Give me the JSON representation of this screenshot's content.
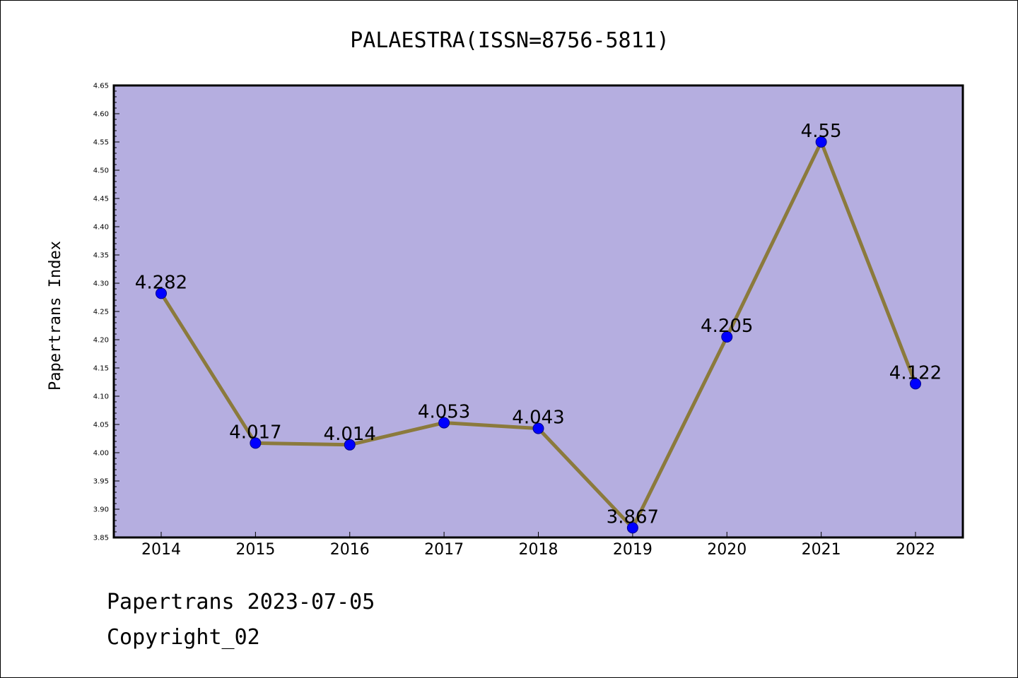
{
  "chart_data": {
    "type": "line",
    "title": "PALAESTRA(ISSN=8756-5811)",
    "xlabel": "",
    "ylabel": "Papertrans Index",
    "categories": [
      "2014",
      "2015",
      "2016",
      "2017",
      "2018",
      "2019",
      "2020",
      "2021",
      "2022"
    ],
    "series": [
      {
        "values": [
          4.282,
          4.017,
          4.014,
          4.053,
          4.043,
          3.867,
          4.205,
          4.55,
          4.122
        ]
      }
    ],
    "data_labels": [
      "4.282",
      "4.017",
      "4.014",
      "4.053",
      "4.043",
      "3.867",
      "4.205",
      "4.55",
      "4.122"
    ],
    "ylim": [
      3.85,
      4.65
    ],
    "yticks": [
      "3.85",
      "3.90",
      "3.95",
      "4.00",
      "4.05",
      "4.10",
      "4.15",
      "4.20",
      "4.25",
      "4.30",
      "4.35",
      "4.40",
      "4.45",
      "4.50",
      "4.55",
      "4.60",
      "4.65"
    ],
    "grid": false,
    "legend": "none",
    "colors": {
      "plot_background": "#b5aee0",
      "line": "#8b7a3c",
      "marker": "#0000ff",
      "marker_edge": "#00008b"
    }
  },
  "footer": {
    "line1": "Papertrans 2023-07-05",
    "line2": "Copyright_02"
  }
}
